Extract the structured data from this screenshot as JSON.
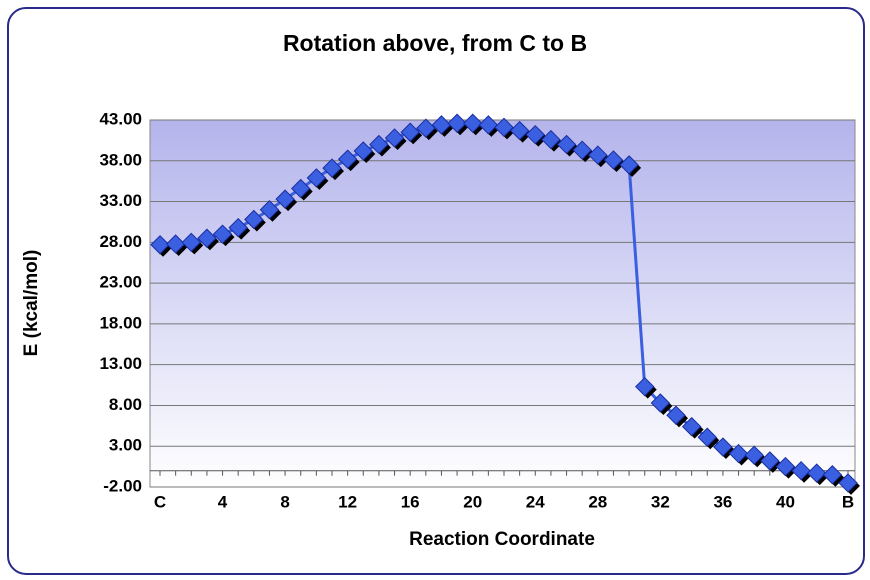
{
  "chart_data": {
    "type": "line",
    "title": "Rotation above, from C to B",
    "x_label": "Reaction Coordinate",
    "y_label": "E (kcal/mol)",
    "categories": [
      "C",
      null,
      null,
      null,
      "4",
      null,
      null,
      null,
      "8",
      null,
      null,
      null,
      "12",
      null,
      null,
      null,
      "16",
      null,
      null,
      null,
      "20",
      null,
      null,
      null,
      "24",
      null,
      null,
      null,
      "28",
      null,
      null,
      null,
      "32",
      null,
      null,
      null,
      "36",
      null,
      null,
      null,
      "40",
      null,
      null,
      null,
      "B"
    ],
    "series": [
      {
        "name": "E",
        "color": "#3a5fe0",
        "values": [
          27.7,
          27.8,
          28.0,
          28.5,
          29.0,
          29.8,
          30.8,
          32.0,
          33.3,
          34.6,
          35.9,
          37.1,
          38.2,
          39.2,
          40.0,
          40.8,
          41.5,
          42.0,
          42.4,
          42.6,
          42.6,
          42.4,
          42.1,
          41.7,
          41.2,
          40.6,
          40.0,
          39.3,
          38.7,
          38.1,
          37.5,
          10.3,
          8.3,
          6.8,
          5.4,
          4.1,
          2.9,
          2.1,
          1.9,
          1.2,
          0.5,
          0.0,
          -0.3,
          -0.5,
          -1.5
        ]
      }
    ],
    "ylim": [
      -2,
      43
    ],
    "yticks": [
      {
        "value": -2,
        "label": "-2.00"
      },
      {
        "value": 3,
        "label": "3.00"
      },
      {
        "value": 8,
        "label": "8.00"
      },
      {
        "value": 13,
        "label": "13.00"
      },
      {
        "value": 18,
        "label": "18.00"
      },
      {
        "value": 23,
        "label": "23.00"
      },
      {
        "value": 28,
        "label": "28.00"
      },
      {
        "value": 33,
        "label": "33.00"
      },
      {
        "value": 38,
        "label": "38.00"
      },
      {
        "value": 43,
        "label": "43.00"
      }
    ],
    "grid": true
  }
}
